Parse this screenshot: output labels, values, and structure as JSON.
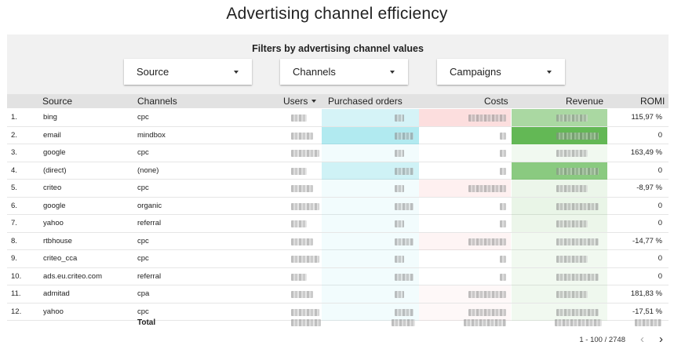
{
  "page": {
    "title": "Advertising channel efficiency"
  },
  "filters": {
    "title": "Filters by advertising channel values",
    "dropdowns": [
      {
        "label": "Source"
      },
      {
        "label": "Channels"
      },
      {
        "label": "Campaigns"
      }
    ]
  },
  "table": {
    "columns": [
      "Source",
      "Channels",
      "Users",
      "Purchased orders",
      "Costs",
      "Revenue",
      "ROMI"
    ],
    "sorted_column": "Users",
    "heat_colors": {
      "orders": "#5fd3e0",
      "costs": "#f59a9a",
      "revenue": "#52b043"
    },
    "rows": [
      {
        "num": "1.",
        "source": "bing",
        "channel": "cpc",
        "romi": "115,97 %",
        "orders": 0.35,
        "costs": 0.55,
        "revenue": 0.55
      },
      {
        "num": "2.",
        "source": "email",
        "channel": "mindbox",
        "romi": "0",
        "orders": 0.65,
        "costs": 0.0,
        "revenue": 1.0
      },
      {
        "num": "3.",
        "source": "google",
        "channel": "cpc",
        "romi": "163,49 %",
        "orders": 0.05,
        "costs": 0.0,
        "revenue": 0.08
      },
      {
        "num": "4.",
        "source": "(direct)",
        "channel": "(none)",
        "romi": "0",
        "orders": 0.4,
        "costs": 0.0,
        "revenue": 0.75
      },
      {
        "num": "5.",
        "source": "criteo",
        "channel": "cpc",
        "romi": "-8,97 %",
        "orders": 0.07,
        "costs": 0.25,
        "revenue": 0.12
      },
      {
        "num": "6.",
        "source": "google",
        "channel": "organic",
        "romi": "0",
        "orders": 0.06,
        "costs": 0.0,
        "revenue": 0.14
      },
      {
        "num": "7.",
        "source": "yahoo",
        "channel": "referral",
        "romi": "0",
        "orders": 0.05,
        "costs": 0.0,
        "revenue": 0.12
      },
      {
        "num": "8.",
        "source": "rtbhouse",
        "channel": "cpc",
        "romi": "-14,77 %",
        "orders": 0.05,
        "costs": 0.18,
        "revenue": 0.07
      },
      {
        "num": "9.",
        "source": "criteo_cca",
        "channel": "cpc",
        "romi": "0",
        "orders": 0.05,
        "costs": 0.0,
        "revenue": 0.07
      },
      {
        "num": "10.",
        "source": "ads.eu.criteo.com",
        "channel": "referral",
        "romi": "0",
        "orders": 0.05,
        "costs": 0.0,
        "revenue": 0.07
      },
      {
        "num": "11.",
        "source": "admitad",
        "channel": "cpa",
        "romi": "181,83 %",
        "orders": 0.05,
        "costs": 0.07,
        "revenue": 0.1
      },
      {
        "num": "12.",
        "source": "yahoo",
        "channel": "cpc",
        "romi": "-17,51 %",
        "orders": 0.04,
        "costs": 0.05,
        "revenue": 0.06
      }
    ],
    "total_label": "Total"
  },
  "pagination": {
    "info": "1 - 100 / 2748",
    "prev": "‹",
    "next": "›"
  }
}
